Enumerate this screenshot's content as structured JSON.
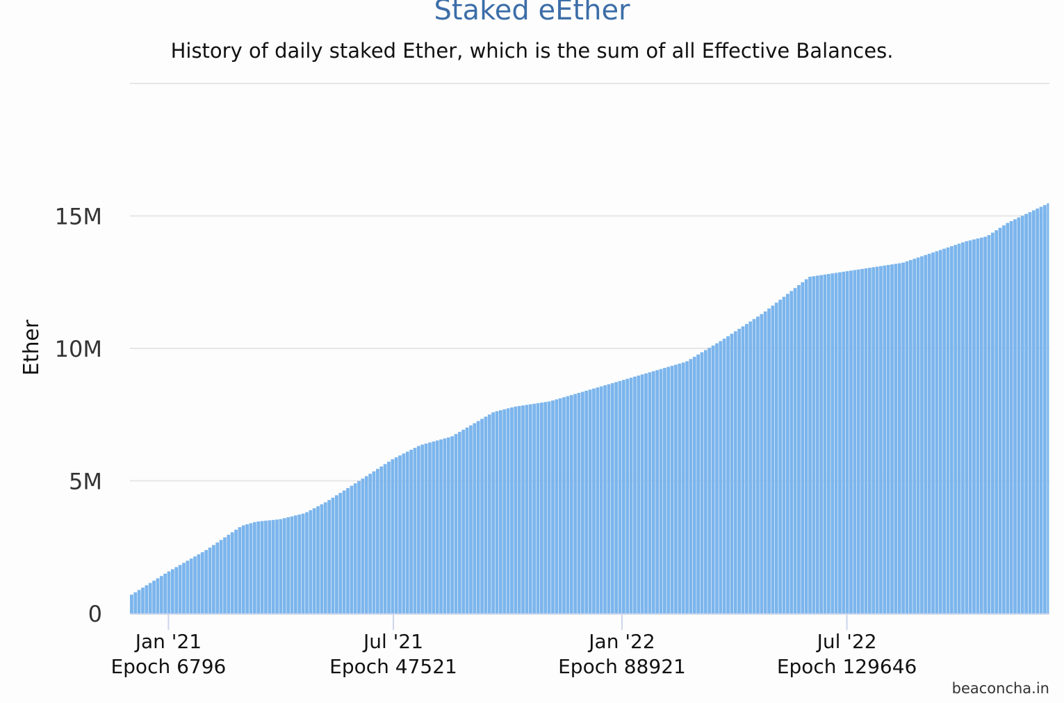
{
  "chart_data": {
    "type": "bar",
    "title": "Staked eEther",
    "subtitle": "History of daily staked Ether, which is the sum of all Effective Balances.",
    "xlabel": "",
    "ylabel": "Ether",
    "ylim": [
      0,
      20000000
    ],
    "yticks": [
      {
        "value": 0,
        "label": "0"
      },
      {
        "value": 5000000,
        "label": "5M"
      },
      {
        "value": 10000000,
        "label": "10M"
      },
      {
        "value": 15000000,
        "label": "15M"
      },
      {
        "value": 20000000,
        "label": ""
      }
    ],
    "xrange": [
      "2020-12-01",
      "2022-12-11"
    ],
    "xticks": [
      {
        "date": "2021-01-01",
        "label": "Jan '21",
        "epoch": "Epoch 6796"
      },
      {
        "date": "2021-07-01",
        "label": "Jul '21",
        "epoch": "Epoch 47521"
      },
      {
        "date": "2022-01-01",
        "label": "Jan '22",
        "epoch": "Epoch 88921"
      },
      {
        "date": "2022-07-01",
        "label": "Jul '22",
        "epoch": "Epoch 129646"
      }
    ],
    "grid": true,
    "bar_interval_days": 3,
    "color": "#7cb5ec",
    "points": [
      [
        "2020-12-01",
        660000
      ],
      [
        "2021-01-01",
        1570000
      ],
      [
        "2021-02-01",
        2400000
      ],
      [
        "2021-03-01",
        3300000
      ],
      [
        "2021-03-13",
        3460000
      ],
      [
        "2021-04-01",
        3550000
      ],
      [
        "2021-04-21",
        3780000
      ],
      [
        "2021-05-08",
        4200000
      ],
      [
        "2021-06-05",
        5040000
      ],
      [
        "2021-07-01",
        5830000
      ],
      [
        "2021-07-23",
        6350000
      ],
      [
        "2021-08-17",
        6670000
      ],
      [
        "2021-09-20",
        7600000
      ],
      [
        "2021-10-07",
        7800000
      ],
      [
        "2021-11-04",
        8000000
      ],
      [
        "2022-01-01",
        8790000
      ],
      [
        "2022-02-22",
        9500000
      ],
      [
        "2022-03-22",
        10290000
      ],
      [
        "2022-04-25",
        11340000
      ],
      [
        "2022-06-01",
        12700000
      ],
      [
        "2022-07-01",
        12910000
      ],
      [
        "2022-08-15",
        13230000
      ],
      [
        "2022-10-05",
        14040000
      ],
      [
        "2022-10-22",
        14230000
      ],
      [
        "2022-11-08",
        14750000
      ],
      [
        "2022-12-11",
        15490000
      ]
    ],
    "credit": "beaconcha.in"
  }
}
